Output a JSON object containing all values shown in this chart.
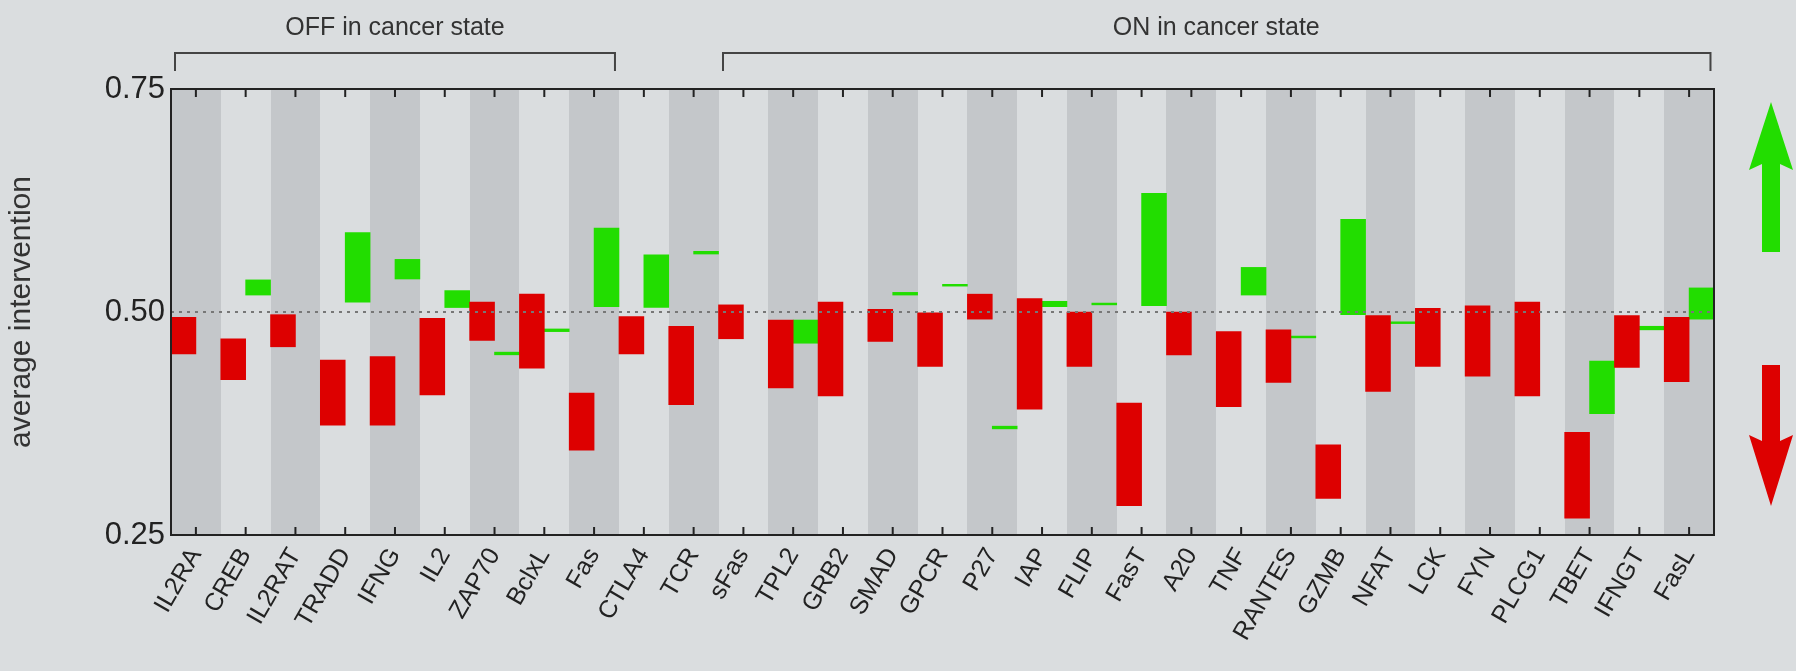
{
  "chart_data": {
    "type": "bar",
    "ylabel": "average intervention",
    "annotations": [
      "OFF in cancer state",
      "ON in cancer state"
    ],
    "categories": [
      "IL2RA",
      "CREB",
      "IL2RAT",
      "TRADD",
      "IFNG",
      "IL2",
      "ZAP70",
      "BclxL",
      "Fas",
      "CTLA4",
      "TCR",
      "sFas",
      "TPL2",
      "GRB2",
      "SMAD",
      "GPCR",
      "P27",
      "IAP",
      "FLIP",
      "FasT",
      "A20",
      "TNF",
      "RANTES",
      "GZMB",
      "NFAT",
      "LCK",
      "FYN",
      "PLCG1",
      "TBET",
      "IFNGT",
      "FasL"
    ],
    "series": [
      {
        "color": "#dd0000",
        "base": [
          0.453,
          0.424,
          0.461,
          0.373,
          0.373,
          0.407,
          0.468,
          0.437,
          0.345,
          0.453,
          0.396,
          0.47,
          0.415,
          0.406,
          0.467,
          0.439,
          0.492,
          0.391,
          0.439,
          0.283,
          0.452,
          0.394,
          0.421,
          0.291,
          0.411,
          0.439,
          0.428,
          0.406,
          0.269,
          0.438,
          0.422
        ],
        "values": [
          0.041,
          0.046,
          0.036,
          0.073,
          0.077,
          0.086,
          0.043,
          0.083,
          0.064,
          0.042,
          0.088,
          0.038,
          0.076,
          0.105,
          0.036,
          0.06,
          0.028,
          0.124,
          0.061,
          0.115,
          0.048,
          0.084,
          0.059,
          0.06,
          0.085,
          0.065,
          0.079,
          0.105,
          0.096,
          0.058,
          0.072
        ]
      },
      {
        "color": "#22dd00",
        "base": [
          null,
          0.519,
          null,
          0.511,
          0.537,
          0.505,
          0.452,
          0.478,
          0.506,
          0.505,
          0.565,
          null,
          0.465,
          null,
          0.519,
          0.529,
          0.369,
          0.506,
          0.508,
          0.507,
          null,
          0.519,
          0.471,
          0.497,
          0.487,
          null,
          null,
          null,
          0.386,
          0.48,
          0.492
        ],
        "values": [
          null,
          0.017,
          null,
          0.078,
          0.022,
          0.019,
          0.003,
          0.003,
          0.088,
          0.059,
          0.003,
          null,
          0.026,
          null,
          0.003,
          0.002,
          0.003,
          0.006,
          0.002,
          0.126,
          null,
          0.031,
          0.002,
          0.107,
          0.002,
          null,
          null,
          null,
          0.059,
          0.004,
          0.035
        ]
      }
    ],
    "ylim": [
      0.25,
      0.75
    ],
    "yticks": [
      {
        "value": 0.25,
        "label": "0.25"
      },
      {
        "value": 0.5,
        "label": "0.50"
      },
      {
        "value": 0.75,
        "label": "0.75"
      }
    ],
    "ref_lines": [
      {
        "axis": "y",
        "value": 0.5,
        "line_style": "dotted",
        "color": "#777777"
      }
    ],
    "grid": false,
    "legend": false
  }
}
